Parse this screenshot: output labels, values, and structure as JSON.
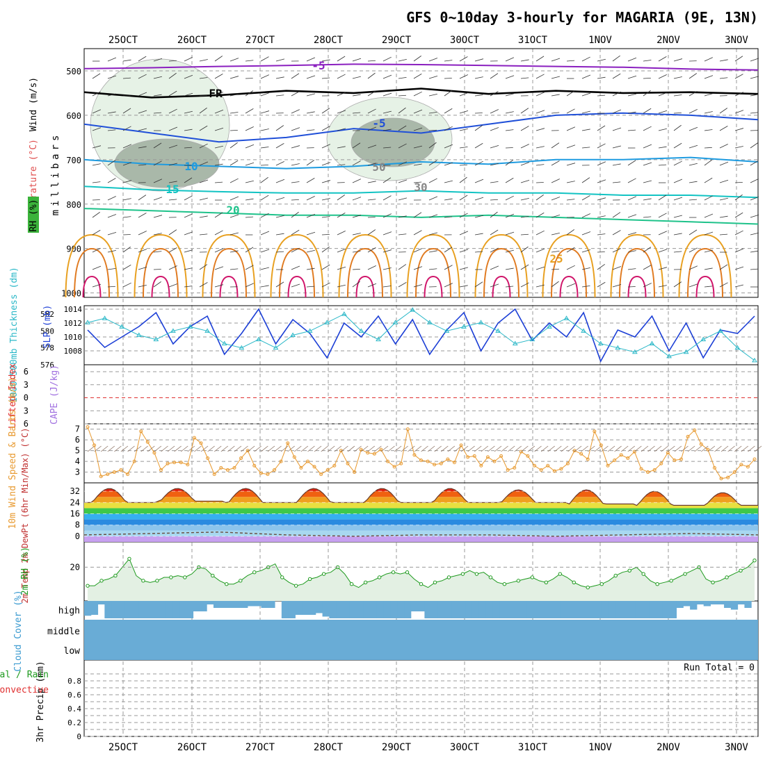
{
  "title": "GFS 0~10day 3-hourly for MAGARIA (9E, 13N)",
  "date_labels": [
    "25OCT",
    "26OCT",
    "27OCT",
    "28OCT",
    "29OCT",
    "30OCT",
    "31OCT",
    "1NOV",
    "2NOV",
    "3NOV"
  ],
  "colors": {
    "temp_cold": "#8a1fbf",
    "temp_fr": "#000000",
    "temp_m5": "#1f4fd8",
    "temp_10": "#1e9be0",
    "temp_15": "#12c3c3",
    "temp_20": "#1ec28a",
    "temp_25": "#e8a020",
    "temp_30": "#e07a20",
    "temp_35": "#d0156a",
    "rh_light": "#e6f2e6",
    "rh_dark": "#a9b8a9",
    "slp": "#1c3fd6",
    "thick": "#2bb8c8",
    "wind10": "#e89a30",
    "rh2m": "#1e9a1e",
    "cloud": "#69acd6",
    "dew": "#6a4a3a",
    "li": "#e03030"
  },
  "chart_data": [
    {
      "panel": "upper-air",
      "type": "contour",
      "ylabels": {
        "wind": "Wind (m/s)",
        "temperature": "Temperature (°C)",
        "rh": "RH (%)",
        "pressure": "millibars"
      },
      "yticks": [
        500,
        600,
        700,
        800,
        900,
        1000
      ],
      "ylim": [
        450,
        1010
      ],
      "contour_labels": [
        "-5",
        "FR",
        "-5",
        "10",
        "15",
        "20",
        "25",
        "50",
        "30"
      ],
      "isotherms": [
        {
          "name": "-5 upper",
          "level_mb": [
            495,
            493,
            490,
            488,
            485,
            486,
            488,
            490,
            492,
            496,
            498
          ]
        },
        {
          "name": "FR",
          "level_mb": [
            548,
            560,
            555,
            545,
            550,
            540,
            552,
            545,
            550,
            548,
            552
          ]
        },
        {
          "name": "-5",
          "level_mb": [
            620,
            640,
            660,
            650,
            630,
            640,
            620,
            600,
            595,
            600,
            610
          ]
        },
        {
          "name": "10",
          "level_mb": [
            700,
            710,
            715,
            720,
            715,
            705,
            710,
            700,
            700,
            695,
            705
          ]
        },
        {
          "name": "15",
          "level_mb": [
            760,
            768,
            772,
            775,
            775,
            770,
            775,
            775,
            780,
            780,
            785
          ]
        },
        {
          "name": "20",
          "level_mb": [
            810,
            815,
            820,
            825,
            825,
            830,
            825,
            830,
            835,
            840,
            845
          ]
        }
      ]
    },
    {
      "panel": "slp-thickness",
      "type": "line",
      "ylabel_left": "1000-500mb Thickness (dm)",
      "ylabel_right": "SLP (mb)",
      "left_ticks": [
        576,
        578,
        580,
        582
      ],
      "right_ticks": [
        1008,
        1010,
        1012,
        1014
      ],
      "series": [
        {
          "name": "SLP",
          "values": [
            1011,
            1008.5,
            1010,
            1011.5,
            1013.5,
            1009,
            1011.5,
            1013,
            1007.5,
            1010.5,
            1014,
            1009,
            1012.5,
            1010.5,
            1007,
            1012,
            1010,
            1013,
            1009,
            1012.5,
            1007.5,
            1011,
            1013.5,
            1008,
            1012,
            1014,
            1009.5,
            1012,
            1010,
            1013.5,
            1006.5,
            1011,
            1010,
            1013,
            1008,
            1012,
            1007,
            1011,
            1010.5,
            1013
          ]
        },
        {
          "name": "Thickness",
          "values": [
            581,
            581.5,
            580.5,
            579.5,
            579,
            580,
            580.5,
            580,
            578.5,
            578,
            579,
            578,
            579.5,
            580,
            581,
            582,
            580,
            579,
            581,
            582.5,
            581,
            580,
            580.5,
            581,
            580,
            578.5,
            579,
            580.5,
            581.5,
            580,
            578.5,
            578,
            577.5,
            578.5,
            577,
            577.5,
            579,
            580,
            578,
            576.5
          ]
        }
      ]
    },
    {
      "panel": "cape-li",
      "type": "line",
      "ylabel_li": "Lifted Index",
      "ylabel_cape": "CAPE (J/kg)",
      "yticks": [
        "6",
        "3",
        "0",
        "3",
        "6"
      ],
      "li_values": [],
      "cape_values": []
    },
    {
      "panel": "wind10m",
      "type": "line",
      "ylabel": "10m Wind Speed & Barbs (m/s)",
      "yticks": [
        3,
        4,
        5,
        6,
        7
      ],
      "ylim": [
        2,
        7.5
      ],
      "values": [
        7.2,
        5.5,
        2.6,
        2.8,
        3.0,
        3.2,
        2.8,
        4.0,
        6.8,
        5.8,
        4.8,
        3.2,
        3.8,
        3.9,
        3.9,
        3.7,
        6.2,
        5.7,
        4.3,
        2.8,
        3.4,
        3.2,
        3.4,
        4.3,
        5.0,
        3.6,
        2.9,
        2.8,
        3.2,
        4.0,
        5.7,
        4.4,
        3.4,
        4.0,
        3.5,
        2.8,
        3.2,
        3.6,
        5.0,
        3.8,
        3.0,
        5.1,
        4.8,
        4.7,
        5.1,
        4.0,
        3.5,
        3.8,
        7.0,
        4.6,
        4.1,
        4.0,
        3.7,
        3.8,
        4.2,
        3.9,
        5.5,
        4.4,
        4.5,
        3.6,
        4.4,
        4.0,
        4.5,
        3.2,
        3.4,
        4.9,
        4.5,
        3.6,
        3.2,
        3.6,
        3.1,
        3.3,
        3.8,
        5.0,
        4.7,
        4.2,
        6.8,
        5.5,
        3.6,
        4.1,
        4.6,
        4.3,
        4.9,
        3.3,
        3.0,
        3.2,
        3.8,
        4.8,
        4.1,
        4.2,
        6.3,
        6.9,
        5.6,
        5.1,
        3.4,
        2.4,
        2.5,
        3.0,
        3.7,
        3.5,
        4.2
      ]
    },
    {
      "panel": "temperature2m",
      "type": "area",
      "ylabel": "2m Temp 2m DewPt (6hr Min/Max) (°C)",
      "yticks": [
        0,
        8,
        16,
        24,
        32
      ],
      "ylim": [
        -4,
        38
      ],
      "temp_max_days": [
        34,
        34,
        34,
        34,
        34,
        34,
        33,
        33,
        32,
        31
      ],
      "temp_min_days": [
        24,
        25,
        24,
        24,
        24,
        24,
        24,
        23,
        22,
        22
      ],
      "dewpoint": [
        1,
        2,
        3,
        1,
        0,
        1,
        1,
        0,
        1,
        2,
        1
      ]
    },
    {
      "panel": "rh2m",
      "type": "line",
      "ylabel": "2m RH (%)",
      "yticks": [
        20
      ],
      "ylim": [
        0,
        35
      ],
      "values": [
        9,
        9,
        12,
        13,
        15,
        20,
        25,
        15,
        12,
        11,
        12,
        14,
        14,
        15,
        14,
        16,
        20,
        19,
        15,
        12,
        10,
        10,
        12,
        15,
        17,
        18,
        20,
        22,
        14,
        11,
        9,
        10,
        13,
        14,
        16,
        17,
        20,
        16,
        10,
        8,
        11,
        12,
        14,
        16,
        17,
        16,
        17,
        13,
        10,
        8,
        11,
        12,
        14,
        15,
        16,
        18,
        16,
        17,
        14,
        11,
        10,
        11,
        12,
        13,
        14,
        12,
        11,
        13,
        16,
        14,
        11,
        9,
        8,
        9,
        10,
        12,
        15,
        17,
        18,
        20,
        16,
        12,
        10,
        11,
        12,
        14,
        16,
        18,
        20,
        13,
        11,
        12,
        14,
        16,
        18,
        20,
        24
      ]
    },
    {
      "panel": "cloud",
      "type": "area",
      "ylabel": "Cloud Cover (%)",
      "ylabels": [
        "high",
        "middle",
        "low"
      ],
      "high_cover": [
        85,
        80,
        20,
        100,
        100,
        100,
        100,
        100,
        100,
        100,
        100,
        100,
        100,
        100,
        100,
        100,
        60,
        60,
        20,
        40,
        40,
        40,
        40,
        40,
        30,
        30,
        40,
        40,
        0,
        100,
        100,
        80,
        80,
        80,
        70,
        90,
        100,
        100,
        100,
        100,
        100,
        100,
        100,
        100,
        100,
        100,
        100,
        100,
        60,
        60,
        100,
        100,
        100,
        100,
        100,
        100,
        100,
        100,
        100,
        100,
        100,
        100,
        100,
        100,
        100,
        100,
        100,
        100,
        100,
        100,
        100,
        100,
        100,
        100,
        100,
        100,
        100,
        100,
        100,
        100,
        100,
        100,
        100,
        100,
        100,
        100,
        100,
        40,
        30,
        50,
        20,
        30,
        20,
        20,
        40,
        50,
        20,
        40,
        0
      ]
    },
    {
      "panel": "precip",
      "type": "bar",
      "ylabel": "3hr Precip (mm)",
      "ylabel_total": "Total / Rain",
      "ylabel_conv": "Convective",
      "yticks": [
        0,
        0.2,
        0.4,
        0.6,
        0.8
      ],
      "ylim": [
        0,
        1
      ],
      "run_total_label": "Run Total = 0",
      "values": []
    }
  ]
}
